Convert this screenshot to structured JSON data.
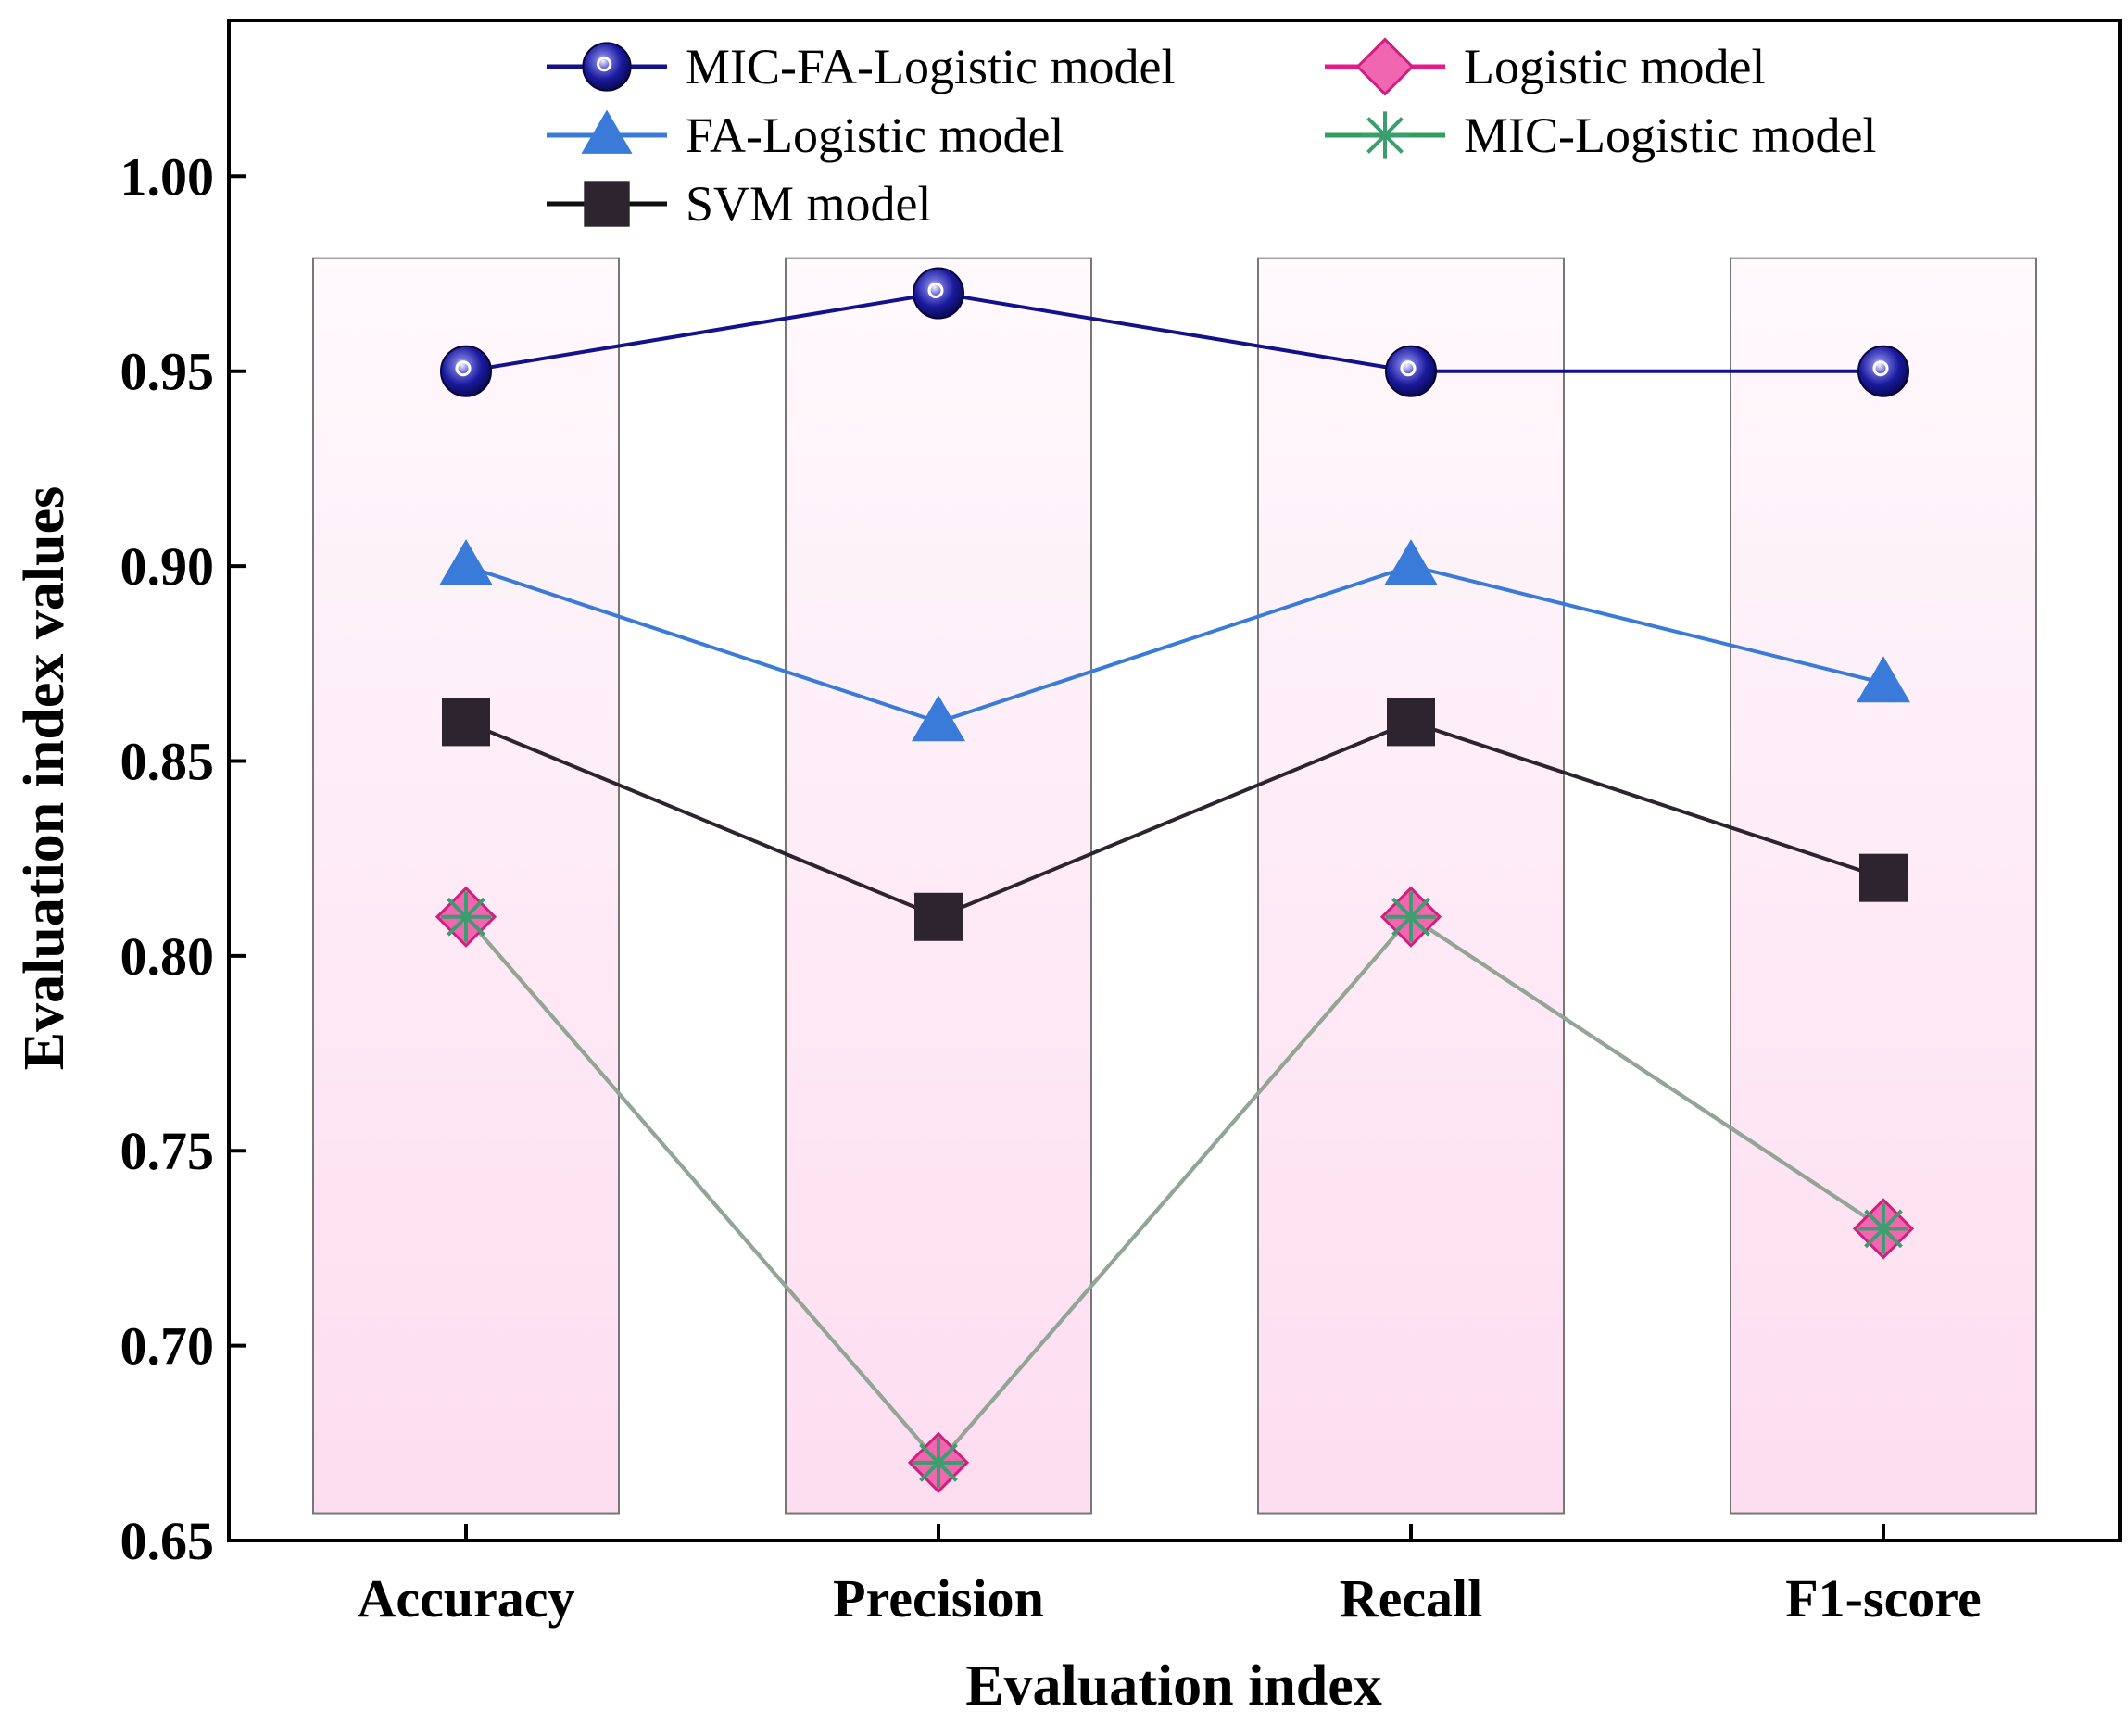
{
  "chart_data": {
    "type": "line",
    "title": "",
    "xlabel": "Evaluation index",
    "ylabel": "Evaluation index values",
    "ylim": [
      0.65,
      1.04
    ],
    "yticks": [
      "0.65",
      "0.70",
      "0.75",
      "0.80",
      "0.85",
      "0.90",
      "0.95",
      "1.00"
    ],
    "ytick_values": [
      0.65,
      0.7,
      0.75,
      0.8,
      0.85,
      0.9,
      0.95,
      1.0
    ],
    "categories": [
      "Accuracy",
      "Precision",
      "Recall",
      "F1-score"
    ],
    "background_bars": {
      "from": 0.657,
      "to": 0.979
    },
    "legend_position": "top",
    "series": [
      {
        "name": "MIC-FA-Logistic model",
        "values": [
          0.95,
          0.97,
          0.95,
          0.95
        ],
        "marker": "sphere",
        "color": "#12128C"
      },
      {
        "name": "FA-Logistic model",
        "values": [
          0.9,
          0.86,
          0.9,
          0.87
        ],
        "marker": "triangle",
        "color": "#3A7BD9"
      },
      {
        "name": "SVM model",
        "values": [
          0.86,
          0.81,
          0.86,
          0.82
        ],
        "marker": "square",
        "color": "#111111"
      },
      {
        "name": "Logistic model",
        "values": [
          0.81,
          0.67,
          0.81,
          0.73
        ],
        "marker": "diamond",
        "color": "#E8188C"
      },
      {
        "name": "MIC-Logistic model",
        "values": [
          0.81,
          0.67,
          0.81,
          0.73
        ],
        "marker": "asterisk",
        "color": "#2E9E5E"
      }
    ]
  }
}
